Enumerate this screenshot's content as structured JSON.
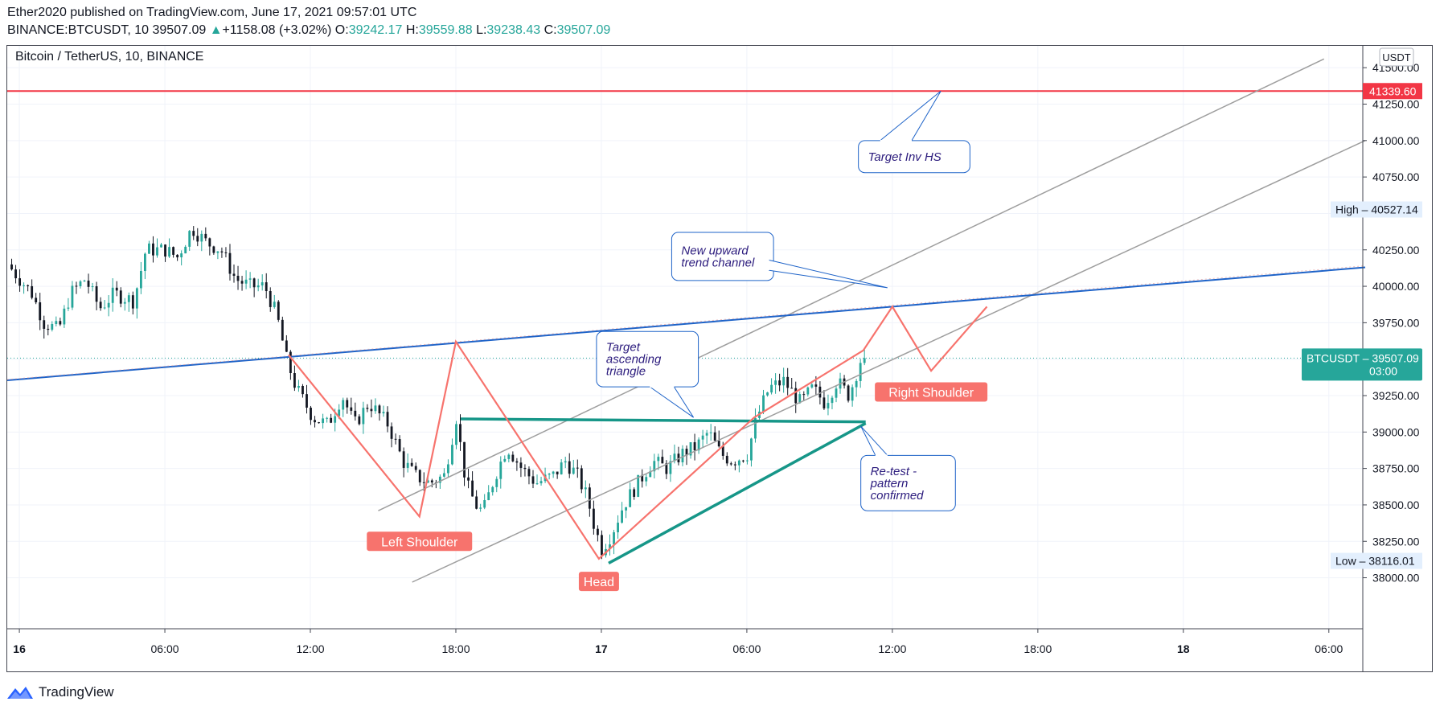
{
  "header": {
    "line1": "Ether2020 published on TradingView.com, June 17, 2021 09:57:01 UTC",
    "symbol": "BINANCE:BTCUSDT, 10",
    "price": "39507.09",
    "arrow": "▲",
    "change": "+1158.08 (+3.02%)",
    "o_label": "O:",
    "o": "39242.17",
    "h_label": "H:",
    "h": "39559.88",
    "l_label": "L:",
    "l": "39238.43",
    "c_label": "C:",
    "c": "39507.09"
  },
  "chart_title": "Bitcoin / TetherUS, 10, BINANCE",
  "currency": "USDT",
  "brand": "TradingView",
  "colors": {
    "up": "#26a69a",
    "down": "#131722",
    "pattern": "#f7736d",
    "target": "#f23645",
    "trendline": "#1e63c8",
    "channel": "#9e9e9e",
    "triangle": "#169688",
    "callout_border": "#1e63c8",
    "callout_text": "#2b1b7d"
  },
  "chart_data": {
    "type": "candlestick",
    "title": "Bitcoin / TetherUS, 10, BINANCE",
    "interval": "10 minutes",
    "ylim": [
      37650,
      41650
    ],
    "y_ticks": [
      38000,
      38250,
      38500,
      38750,
      39000,
      39250,
      39500,
      39750,
      40000,
      40250,
      40500,
      40750,
      41000,
      41250,
      41500
    ],
    "y_tick_labels": [
      "38000.00",
      "38250.00",
      "38500.00",
      "38750.00",
      "39000.00",
      "39250.00",
      "39500.00",
      "39750.00",
      "40000.00",
      "40250.00",
      "40500.00",
      "40750.00",
      "41000.00",
      "41250.00",
      "41500.00"
    ],
    "x_range_hours": [
      -0.5,
      55.4
    ],
    "x_ticks": [
      {
        "t": 0,
        "label": "16",
        "bold": true
      },
      {
        "t": 6,
        "label": "06:00",
        "bold": false
      },
      {
        "t": 12,
        "label": "12:00",
        "bold": false
      },
      {
        "t": 18,
        "label": "18:00",
        "bold": false
      },
      {
        "t": 24,
        "label": "17",
        "bold": true
      },
      {
        "t": 30,
        "label": "06:00",
        "bold": false
      },
      {
        "t": 36,
        "label": "12:00",
        "bold": false
      },
      {
        "t": 42,
        "label": "18:00",
        "bold": false
      },
      {
        "t": 48,
        "label": "18",
        "bold": true
      },
      {
        "t": 54,
        "label": "06:00",
        "bold": false
      }
    ],
    "price_path": [
      [
        -0.4,
        40150
      ],
      [
        0.6,
        39950
      ],
      [
        1.1,
        39750
      ],
      [
        1.7,
        39700
      ],
      [
        2.2,
        39950
      ],
      [
        2.8,
        40050
      ],
      [
        3.4,
        39850
      ],
      [
        4,
        39950
      ],
      [
        4.8,
        39900
      ],
      [
        5.3,
        40250
      ],
      [
        6.1,
        40250
      ],
      [
        6.6,
        40200
      ],
      [
        7.2,
        40400
      ],
      [
        7.8,
        40300
      ],
      [
        8.4,
        40250
      ],
      [
        9,
        40050
      ],
      [
        9.6,
        40000
      ],
      [
        10.2,
        40000
      ],
      [
        10.7,
        39800
      ],
      [
        11.1,
        39500
      ],
      [
        11.5,
        39300
      ],
      [
        12.2,
        39100
      ],
      [
        12.8,
        39050
      ],
      [
        13.4,
        39250
      ],
      [
        13.9,
        39050
      ],
      [
        14.5,
        39200
      ],
      [
        15.3,
        39050
      ],
      [
        15.9,
        38800
      ],
      [
        16.4,
        38700
      ],
      [
        17,
        38650
      ],
      [
        17.6,
        38700
      ],
      [
        18.1,
        39100
      ],
      [
        18.5,
        38650
      ],
      [
        18.9,
        38500
      ],
      [
        19.2,
        38450
      ],
      [
        19.7,
        38700
      ],
      [
        20.2,
        38900
      ],
      [
        20.8,
        38750
      ],
      [
        21.4,
        38650
      ],
      [
        22.1,
        38700
      ],
      [
        22.6,
        38800
      ],
      [
        23.1,
        38700
      ],
      [
        23.5,
        38550
      ],
      [
        23.8,
        38350
      ],
      [
        24.1,
        38200
      ],
      [
        24.5,
        38300
      ],
      [
        25,
        38500
      ],
      [
        25.6,
        38650
      ],
      [
        26.2,
        38800
      ],
      [
        26.8,
        38750
      ],
      [
        27.4,
        38850
      ],
      [
        28,
        38900
      ],
      [
        28.5,
        39000
      ],
      [
        29,
        38850
      ],
      [
        29.5,
        38800
      ],
      [
        30.1,
        38850
      ],
      [
        30.5,
        39100
      ],
      [
        31,
        39300
      ],
      [
        31.6,
        39350
      ],
      [
        32.3,
        39200
      ],
      [
        32.8,
        39300
      ],
      [
        33.3,
        39200
      ],
      [
        33.8,
        39350
      ],
      [
        34.3,
        39250
      ],
      [
        34.8,
        39507.09
      ]
    ],
    "high": {
      "label": "High",
      "value": "40527.14"
    },
    "low": {
      "label": "Low",
      "value": "38116.01"
    },
    "last": {
      "label": "BTCUSDT",
      "value": "39507.09",
      "countdown": "03:00"
    },
    "target_level": {
      "value": 41339.6,
      "label": "41339.60",
      "start_t": -0.8
    },
    "trendline": {
      "from": [
        -0.5,
        39355
      ],
      "to": [
        55.5,
        40130
      ]
    },
    "channel_upper": {
      "from": [
        14.8,
        38460
      ],
      "to": [
        53.8,
        41560
      ]
    },
    "channel_lower": {
      "from": [
        16.2,
        37970
      ],
      "to": [
        55.5,
        41000
      ]
    },
    "triangle_top": {
      "from": [
        18.2,
        39090
      ],
      "to": [
        34.9,
        39070
      ]
    },
    "triangle_bottom": {
      "from": [
        24.3,
        38100
      ],
      "to": [
        34.9,
        39060
      ]
    },
    "inverse_head_shoulders": [
      [
        11.1,
        39530
      ],
      [
        16.5,
        38420
      ],
      [
        18.0,
        39620
      ],
      [
        23.9,
        38130
      ],
      [
        30.3,
        39100
      ],
      [
        34.8,
        39560
      ],
      [
        36,
        39860
      ],
      [
        37.6,
        39420
      ],
      [
        39.9,
        39860
      ]
    ],
    "pattern_labels": [
      {
        "text": "Left Shoulder",
        "t": 16.5,
        "price": 38250
      },
      {
        "text": "Head",
        "t": 23.9,
        "price": 37975
      },
      {
        "text": "Right Shoulder",
        "t": 37.6,
        "price": 39275
      }
    ],
    "annotations": [
      {
        "text": "Target Inv HS",
        "box": {
          "t1": 34.6,
          "t2": 39.2,
          "p1": 40780,
          "p2": 41000
        },
        "pointer": [
          [
            35.5,
            41000
          ],
          [
            38.0,
            41340
          ],
          [
            36.8,
            41000
          ]
        ]
      },
      {
        "text": "New upward trend channel",
        "box": {
          "t1": 26.9,
          "t2": 31.1,
          "p1": 40040,
          "p2": 40370
        },
        "pointer": [
          [
            30.9,
            40110
          ],
          [
            35.8,
            39990
          ],
          [
            30.9,
            40180
          ]
        ]
      },
      {
        "text": "Target ascending triangle",
        "box": {
          "t1": 23.8,
          "t2": 28.0,
          "p1": 39310,
          "p2": 39690
        },
        "pointer": [
          [
            26.0,
            39310
          ],
          [
            27.8,
            39100
          ],
          [
            27.0,
            39310
          ]
        ]
      },
      {
        "text": "Re-test - pattern confirmed",
        "box": {
          "t1": 34.7,
          "t2": 38.6,
          "p1": 38460,
          "p2": 38840
        },
        "pointer": [
          [
            35.3,
            38840
          ],
          [
            34.7,
            39040
          ],
          [
            35.8,
            38840
          ]
        ]
      }
    ]
  }
}
